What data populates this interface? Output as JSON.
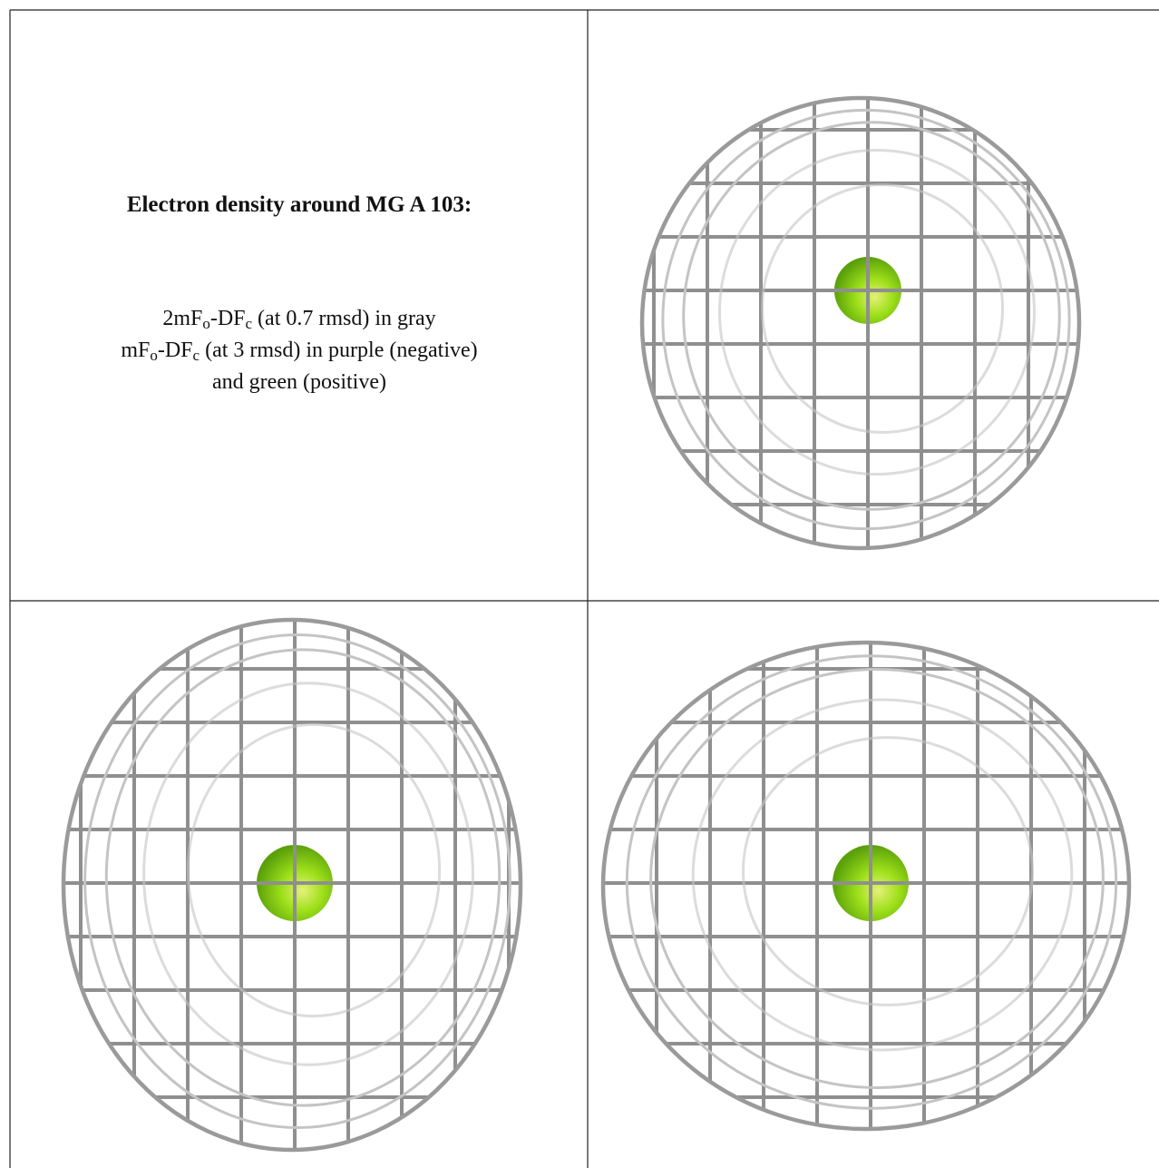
{
  "figure": {
    "title": "Electron density around MG A 103:",
    "lines": [
      [
        "2mF",
        "o",
        "-DF",
        "c",
        " (at 0.7 rmsd) in gray"
      ],
      [
        "mF",
        "o",
        "-DF",
        "c",
        " (at 3 rmsd) in purple (negative)"
      ],
      [
        "and green (positive)"
      ]
    ]
  }
}
